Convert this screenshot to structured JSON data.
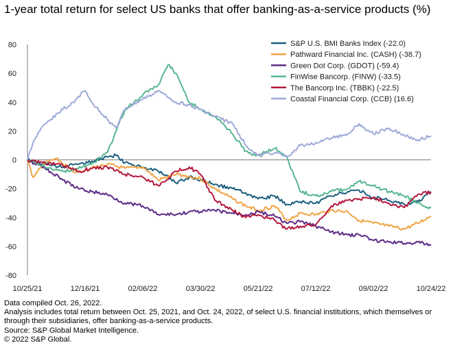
{
  "title": "1-year total return for select US banks that offer banking-as-a-service products (%)",
  "footnotes": [
    "Data compiled Oct. 26, 2022.",
    "Analysis includes total return between Oct. 25, 2021, and Oct. 24, 2022, of select U.S. financial institutions, which themselves or through their subsidiaries, offer banking-as-a-service products.",
    "Source: S&P Global Market Intelligence.",
    "© 2022 S&P Global."
  ],
  "chart_data": {
    "type": "line",
    "x_ticks": [
      "10/25/21",
      "12/16/21",
      "02/06/22",
      "03/30/22",
      "05/21/22",
      "07/12/22",
      "09/02/22",
      "10/24/22"
    ],
    "x_range": [
      "10/25/21",
      "10/24/22"
    ],
    "ylim": [
      -80,
      80
    ],
    "y_ticks": [
      -80,
      -60,
      -40,
      -20,
      0,
      20,
      40,
      60,
      80
    ],
    "grid": false,
    "legend_position": "top-right",
    "series": [
      {
        "name": "S&P U.S. BMI Banks Index (-22.0)",
        "color": "#1b5e7e",
        "points": [
          [
            "10/25/21",
            0
          ],
          [
            "11/10/21",
            -3
          ],
          [
            "11/26/21",
            -5
          ],
          [
            "12/10/21",
            -3
          ],
          [
            "12/22/21",
            -1
          ],
          [
            "01/05/22",
            2
          ],
          [
            "01/13/22",
            3
          ],
          [
            "01/21/22",
            -2
          ],
          [
            "02/06/22",
            -5
          ],
          [
            "02/20/22",
            -8
          ],
          [
            "03/08/22",
            -16
          ],
          [
            "03/20/22",
            -12
          ],
          [
            "03/30/22",
            -14
          ],
          [
            "04/12/22",
            -17
          ],
          [
            "04/28/22",
            -20
          ],
          [
            "05/10/22",
            -23
          ],
          [
            "05/21/22",
            -27
          ],
          [
            "06/05/22",
            -25
          ],
          [
            "06/16/22",
            -31
          ],
          [
            "06/28/22",
            -29
          ],
          [
            "07/12/22",
            -30
          ],
          [
            "07/26/22",
            -25
          ],
          [
            "08/10/22",
            -22
          ],
          [
            "08/20/22",
            -21
          ],
          [
            "09/02/22",
            -26
          ],
          [
            "09/16/22",
            -28
          ],
          [
            "09/30/22",
            -31
          ],
          [
            "10/12/22",
            -29
          ],
          [
            "10/24/22",
            -22
          ]
        ]
      },
      {
        "name": "Pathward Financial Inc. (CASH) (-38.7)",
        "color": "#f0a444",
        "points": [
          [
            "10/25/21",
            0
          ],
          [
            "10/30/21",
            -12
          ],
          [
            "11/10/21",
            -2
          ],
          [
            "11/20/21",
            1
          ],
          [
            "12/05/21",
            -8
          ],
          [
            "12/16/21",
            -7
          ],
          [
            "01/05/22",
            -3
          ],
          [
            "01/21/22",
            -6
          ],
          [
            "02/06/22",
            -5
          ],
          [
            "02/20/22",
            -14
          ],
          [
            "03/08/22",
            -10
          ],
          [
            "03/30/22",
            -13
          ],
          [
            "04/12/22",
            -20
          ],
          [
            "04/28/22",
            -27
          ],
          [
            "05/10/22",
            -32
          ],
          [
            "05/21/22",
            -35
          ],
          [
            "06/05/22",
            -32
          ],
          [
            "06/16/22",
            -42
          ],
          [
            "06/28/22",
            -37
          ],
          [
            "07/12/22",
            -38
          ],
          [
            "07/26/22",
            -35
          ],
          [
            "08/10/22",
            -36
          ],
          [
            "08/20/22",
            -42
          ],
          [
            "09/02/22",
            -44
          ],
          [
            "09/16/22",
            -46
          ],
          [
            "09/30/22",
            -48
          ],
          [
            "10/12/22",
            -44
          ],
          [
            "10/24/22",
            -39
          ]
        ]
      },
      {
        "name": "Green Dot Corp. (GDOT) (-59.4)",
        "color": "#5b2a86",
        "points": [
          [
            "10/25/21",
            0
          ],
          [
            "11/10/21",
            -6
          ],
          [
            "11/26/21",
            -14
          ],
          [
            "12/10/21",
            -20
          ],
          [
            "12/22/21",
            -22
          ],
          [
            "01/05/22",
            -24
          ],
          [
            "01/21/22",
            -30
          ],
          [
            "02/06/22",
            -32
          ],
          [
            "02/20/22",
            -38
          ],
          [
            "03/08/22",
            -38
          ],
          [
            "03/20/22",
            -36
          ],
          [
            "03/30/22",
            -36
          ],
          [
            "04/12/22",
            -35
          ],
          [
            "04/28/22",
            -37
          ],
          [
            "05/10/22",
            -38
          ],
          [
            "05/21/22",
            -36
          ],
          [
            "06/05/22",
            -39
          ],
          [
            "06/16/22",
            -44
          ],
          [
            "06/28/22",
            -43
          ],
          [
            "07/12/22",
            -46
          ],
          [
            "07/26/22",
            -50
          ],
          [
            "08/10/22",
            -52
          ],
          [
            "08/20/22",
            -52
          ],
          [
            "09/02/22",
            -56
          ],
          [
            "09/16/22",
            -57
          ],
          [
            "09/30/22",
            -58
          ],
          [
            "10/12/22",
            -57
          ],
          [
            "10/24/22",
            -59.4
          ]
        ]
      },
      {
        "name": "FinWise Bancorp. (FINW) (-33.5)",
        "color": "#56b58e",
        "points": [
          [
            "10/25/21",
            0
          ],
          [
            "11/10/21",
            -5
          ],
          [
            "11/26/21",
            -8
          ],
          [
            "12/10/21",
            -6
          ],
          [
            "12/22/21",
            -3
          ],
          [
            "01/05/22",
            5
          ],
          [
            "01/13/22",
            20
          ],
          [
            "01/21/22",
            35
          ],
          [
            "02/06/22",
            45
          ],
          [
            "02/20/22",
            52
          ],
          [
            "03/01/22",
            66
          ],
          [
            "03/08/22",
            60
          ],
          [
            "03/20/22",
            40
          ],
          [
            "03/30/22",
            35
          ],
          [
            "04/12/22",
            30
          ],
          [
            "04/28/22",
            18
          ],
          [
            "05/10/22",
            6
          ],
          [
            "05/21/22",
            3
          ],
          [
            "06/05/22",
            8
          ],
          [
            "06/16/22",
            2
          ],
          [
            "06/28/22",
            -22
          ],
          [
            "07/12/22",
            -25
          ],
          [
            "07/26/22",
            -22
          ],
          [
            "08/10/22",
            -20
          ],
          [
            "08/20/22",
            -15
          ],
          [
            "09/02/22",
            -18
          ],
          [
            "09/16/22",
            -22
          ],
          [
            "09/30/22",
            -25
          ],
          [
            "10/12/22",
            -30
          ],
          [
            "10/24/22",
            -33.5
          ]
        ]
      },
      {
        "name": "The Bancorp Inc. (TBBK) (-22.5)",
        "color": "#b5173d",
        "points": [
          [
            "10/25/21",
            0
          ],
          [
            "11/10/21",
            -2
          ],
          [
            "11/26/21",
            -4
          ],
          [
            "12/10/21",
            -8
          ],
          [
            "12/22/21",
            -6
          ],
          [
            "01/05/22",
            -5
          ],
          [
            "01/21/22",
            -10
          ],
          [
            "02/06/22",
            -12
          ],
          [
            "02/20/22",
            -18
          ],
          [
            "03/08/22",
            -8
          ],
          [
            "03/20/22",
            -5
          ],
          [
            "03/30/22",
            -10
          ],
          [
            "04/12/22",
            -28
          ],
          [
            "04/28/22",
            -35
          ],
          [
            "05/10/22",
            -40
          ],
          [
            "05/21/22",
            -38
          ],
          [
            "06/05/22",
            -42
          ],
          [
            "06/16/22",
            -48
          ],
          [
            "06/28/22",
            -46
          ],
          [
            "07/12/22",
            -45
          ],
          [
            "07/26/22",
            -32
          ],
          [
            "08/10/22",
            -28
          ],
          [
            "08/20/22",
            -27
          ],
          [
            "09/02/22",
            -26
          ],
          [
            "09/16/22",
            -30
          ],
          [
            "09/30/22",
            -33
          ],
          [
            "10/12/22",
            -24
          ],
          [
            "10/24/22",
            -22.5
          ]
        ]
      },
      {
        "name": "Coastal Financial Corp. (CCB) (16.6)",
        "color": "#9da9d8",
        "points": [
          [
            "10/25/21",
            0
          ],
          [
            "10/30/21",
            12
          ],
          [
            "11/05/21",
            20
          ],
          [
            "11/15/21",
            28
          ],
          [
            "11/26/21",
            35
          ],
          [
            "12/05/21",
            40
          ],
          [
            "12/16/21",
            48
          ],
          [
            "12/22/21",
            40
          ],
          [
            "01/05/22",
            28
          ],
          [
            "01/13/22",
            22
          ],
          [
            "01/21/22",
            35
          ],
          [
            "02/06/22",
            42
          ],
          [
            "02/20/22",
            48
          ],
          [
            "03/01/22",
            43
          ],
          [
            "03/08/22",
            40
          ],
          [
            "03/20/22",
            38
          ],
          [
            "03/30/22",
            35
          ],
          [
            "04/12/22",
            30
          ],
          [
            "04/28/22",
            25
          ],
          [
            "05/10/22",
            10
          ],
          [
            "05/21/22",
            3
          ],
          [
            "06/05/22",
            5
          ],
          [
            "06/16/22",
            2
          ],
          [
            "06/28/22",
            10
          ],
          [
            "07/12/22",
            12
          ],
          [
            "07/26/22",
            15
          ],
          [
            "08/10/22",
            18
          ],
          [
            "08/20/22",
            25
          ],
          [
            "09/02/22",
            18
          ],
          [
            "09/16/22",
            22
          ],
          [
            "09/30/22",
            17
          ],
          [
            "10/12/22",
            14
          ],
          [
            "10/24/22",
            16.6
          ]
        ]
      }
    ]
  }
}
